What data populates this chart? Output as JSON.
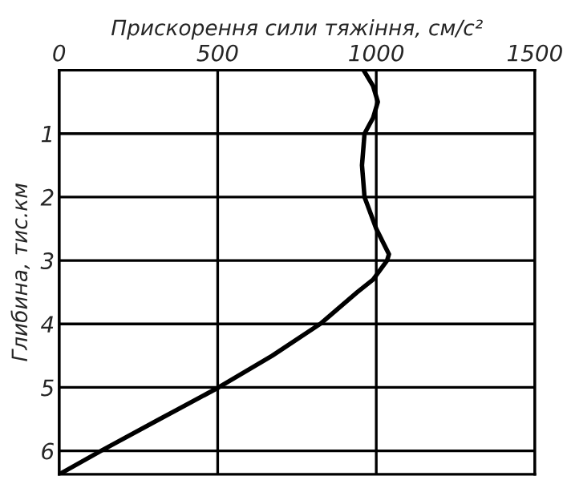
{
  "chart_data": {
    "type": "line",
    "orientation": "horizontal",
    "xlabel": "Прискорення сили тяжіння, см/с²",
    "ylabel": "Глибина, тис.км",
    "x": [
      0,
      0.25,
      0.5,
      0.75,
      1,
      1.5,
      2,
      2.5,
      2.9,
      3,
      3.3,
      3.5,
      4,
      4.5,
      5,
      5.5,
      6,
      6.37
    ],
    "series": [
      {
        "color": "#000000",
        "values": [
          960,
          990,
          1005,
          990,
          963,
          955,
          963,
          1000,
          1040,
          1034,
          990,
          940,
          823,
          672,
          503,
          317,
          132,
          0
        ]
      }
    ],
    "xlim": [
      0,
      1500
    ],
    "xticks": [
      0,
      500,
      1000,
      1500
    ],
    "ylim": [
      6.37,
      0
    ],
    "yticks": [
      1,
      2,
      3,
      4,
      5,
      6
    ],
    "grid": true,
    "line_style": "solid"
  }
}
